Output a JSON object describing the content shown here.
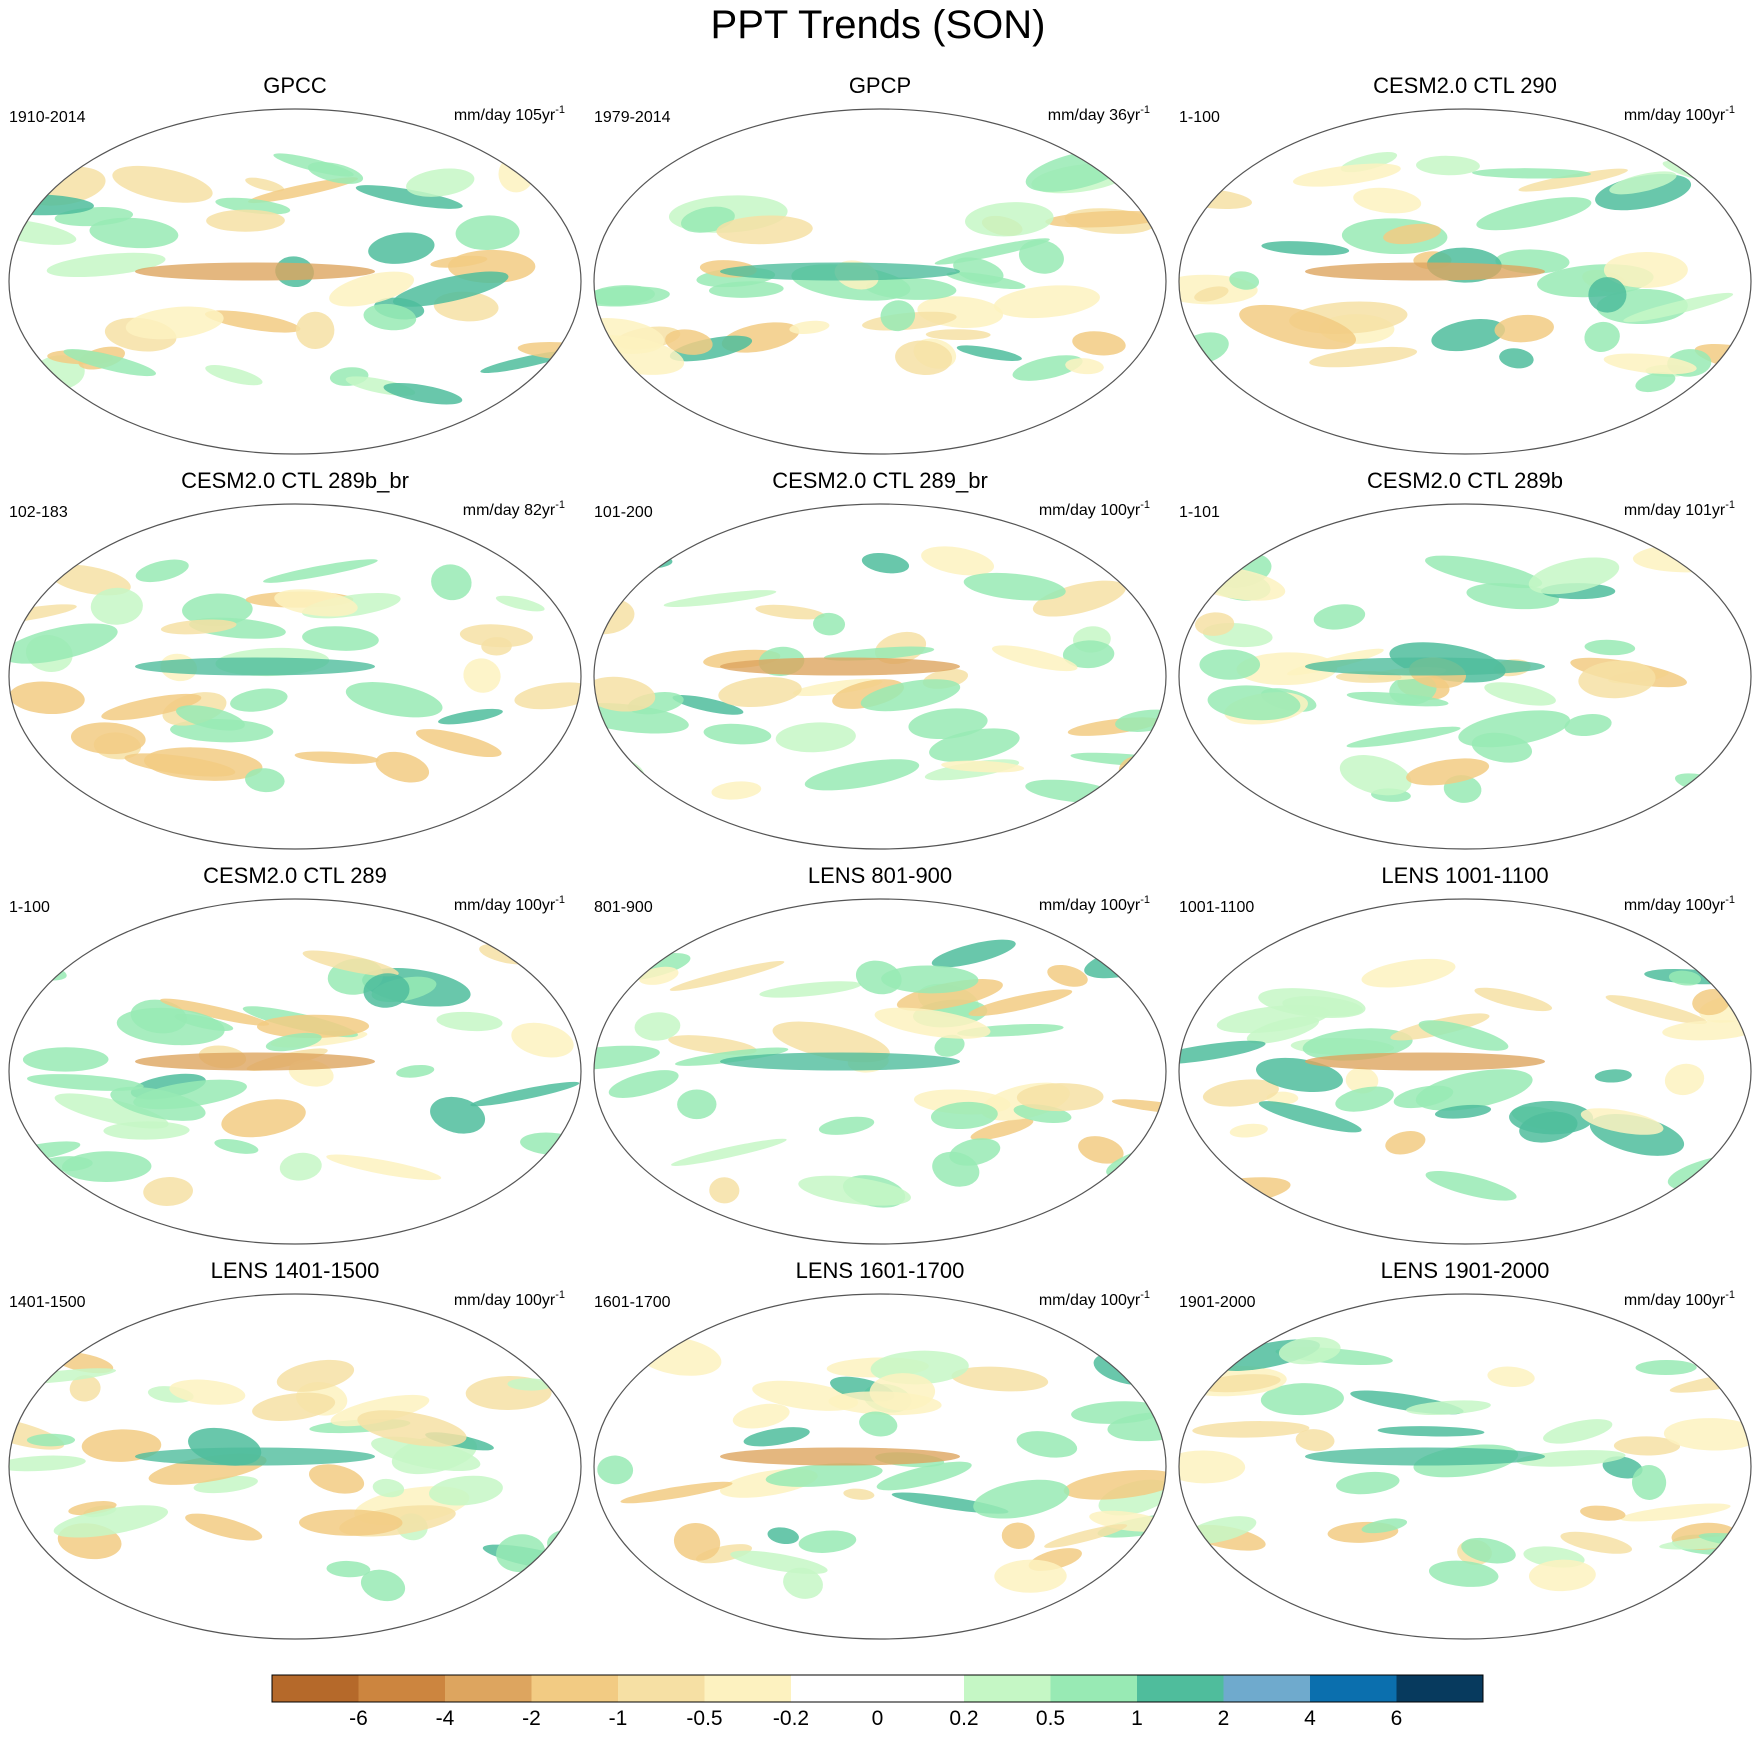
{
  "title": "PPT Trends (SON)",
  "panels": [
    {
      "title": "GPCC",
      "period": "1910-2014",
      "units": "mm/day 105yr",
      "units_sup": "-1"
    },
    {
      "title": "GPCP",
      "period": "1979-2014",
      "units": "mm/day 36yr",
      "units_sup": "-1"
    },
    {
      "title": "CESM2.0 CTL 290",
      "period": "1-100",
      "units": "mm/day 100yr",
      "units_sup": "-1"
    },
    {
      "title": "CESM2.0 CTL 289b_br",
      "period": "102-183",
      "units": "mm/day 82yr",
      "units_sup": "-1"
    },
    {
      "title": "CESM2.0 CTL 289_br",
      "period": "101-200",
      "units": "mm/day 100yr",
      "units_sup": "-1"
    },
    {
      "title": "CESM2.0 CTL 289b",
      "period": "1-101",
      "units": "mm/day 101yr",
      "units_sup": "-1"
    },
    {
      "title": "CESM2.0 CTL 289",
      "period": "1-100",
      "units": "mm/day 100yr",
      "units_sup": "-1"
    },
    {
      "title": "LENS 801-900",
      "period": "801-900",
      "units": "mm/day 100yr",
      "units_sup": "-1"
    },
    {
      "title": "LENS 1001-1100",
      "period": "1001-1100",
      "units": "mm/day 100yr",
      "units_sup": "-1"
    },
    {
      "title": "LENS 1401-1500",
      "period": "1401-1500",
      "units": "mm/day 100yr",
      "units_sup": "-1"
    },
    {
      "title": "LENS 1601-1700",
      "period": "1601-1700",
      "units": "mm/day 100yr",
      "units_sup": "-1"
    },
    {
      "title": "LENS 1901-2000",
      "period": "1901-2000",
      "units": "mm/day 100yr",
      "units_sup": "-1"
    }
  ],
  "colorbar": {
    "colors": [
      "#b5692a",
      "#cc853f",
      "#dda55f",
      "#f2cb83",
      "#f6e0a4",
      "#fdf2c0",
      "#ffffff",
      "#ffffff",
      "#c5f7c5",
      "#98eab4",
      "#4fbd9c",
      "#6faacd",
      "#0b6fae",
      "#073a5e"
    ],
    "levels": [
      -6,
      -4,
      -2,
      -1,
      -0.5,
      -0.2,
      0,
      0.2,
      0.5,
      1,
      2,
      4,
      6
    ]
  }
}
